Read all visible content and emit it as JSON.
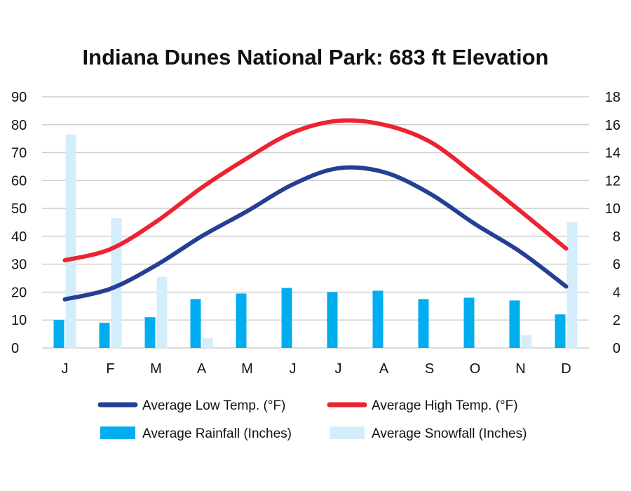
{
  "chart_data": {
    "type": "bar",
    "title": "Indiana Dunes National Park: 683 ft Elevation",
    "categories": [
      "J",
      "F",
      "M",
      "A",
      "M",
      "J",
      "J",
      "A",
      "S",
      "O",
      "N",
      "D"
    ],
    "y_left": {
      "ylim": [
        0,
        90
      ],
      "ticks": [
        "0",
        "10",
        "20",
        "30",
        "40",
        "50",
        "60",
        "70",
        "80",
        "90"
      ]
    },
    "y_right": {
      "ylim": [
        0,
        18
      ],
      "ticks": [
        "0",
        "2",
        "4",
        "6",
        "8",
        "10",
        "12",
        "14",
        "16",
        "18"
      ]
    },
    "grid": true,
    "legend_position": "bottom",
    "series": [
      {
        "name": "Average Low Temp. (°F)",
        "kind": "line",
        "axis": "left",
        "color": "#253f94",
        "values": [
          17.4,
          21.2,
          29.6,
          40.0,
          49.0,
          58.6,
          64.4,
          63.0,
          55.4,
          44.4,
          34.4,
          22.0
        ]
      },
      {
        "name": "Average High Temp. (°F)",
        "kind": "line",
        "axis": "left",
        "color": "#ec2330",
        "values": [
          31.4,
          35.4,
          45.2,
          57.4,
          68.0,
          77.2,
          81.4,
          80.0,
          74.0,
          62.0,
          49.0,
          35.6
        ]
      },
      {
        "name": "Average Rainfall (Inches)",
        "kind": "bar",
        "axis": "right",
        "color": "#00aeef",
        "values": [
          2.0,
          1.8,
          2.2,
          3.5,
          3.9,
          4.3,
          4.0,
          4.1,
          3.5,
          3.6,
          3.4,
          2.4
        ]
      },
      {
        "name": "Average Snowfall (Inches)",
        "kind": "bar",
        "axis": "right",
        "color": "#d3edfb",
        "values": [
          15.3,
          9.3,
          5.1,
          0.7,
          0,
          0,
          0,
          0,
          0,
          0,
          0.9,
          9.0
        ]
      }
    ]
  }
}
